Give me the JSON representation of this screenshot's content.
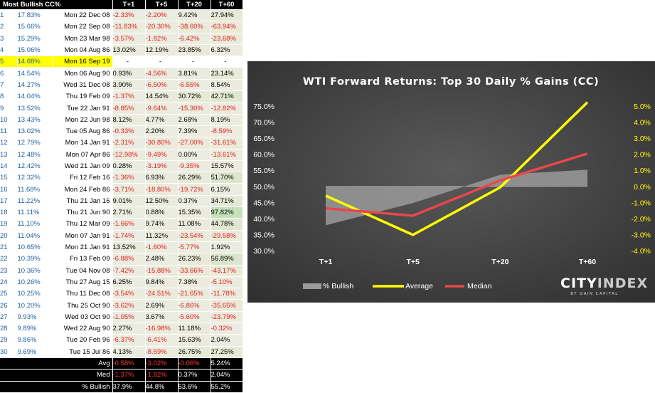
{
  "table": {
    "header": [
      "Most Bullish CC%",
      "T+1",
      "T+5",
      "T+20",
      "T+60"
    ],
    "highlight_row": 4,
    "rows": [
      [
        "1",
        "17.83%",
        "Mon 22 Dec 08",
        "-2.33%",
        "-2.20%",
        "9.42%",
        "27.94%"
      ],
      [
        "2",
        "15.66%",
        "Mon 22 Sep 08",
        "-11.83%",
        "-20.30%",
        "-38.60%",
        "-63.94%"
      ],
      [
        "3",
        "15.29%",
        "Mon 23 Mar 98",
        "-3.57%",
        "-1.82%",
        "-6.42%",
        "-23.68%"
      ],
      [
        "4",
        "15.06%",
        "Mon 04 Aug 86",
        "13.02%",
        "12.19%",
        "23.85%",
        "6.32%"
      ],
      [
        "5",
        "14.68%",
        "Mon 16 Sep 19",
        "-",
        "-",
        "-",
        "-"
      ],
      [
        "6",
        "14.54%",
        "Mon 06 Aug 90",
        "0.93%",
        "-4.56%",
        "3.81%",
        "23.14%"
      ],
      [
        "7",
        "14.27%",
        "Wed 31 Dec 08",
        "3.90%",
        "-6.50%",
        "-6.55%",
        "8.54%"
      ],
      [
        "8",
        "14.04%",
        "Thu 19 Feb 09",
        "-1.37%",
        "14.54%",
        "30.72%",
        "42.71%"
      ],
      [
        "9",
        "13.52%",
        "Tue 22 Jan 91",
        "-8.85%",
        "-9.64%",
        "-15.30%",
        "-12.82%"
      ],
      [
        "10",
        "13.43%",
        "Mon 22 Jun 98",
        "8.12%",
        "4.77%",
        "2.68%",
        "8.19%"
      ],
      [
        "11",
        "13.02%",
        "Tue 05 Aug 86",
        "-0.33%",
        "2.20%",
        "7.39%",
        "-8.59%"
      ],
      [
        "12",
        "12.79%",
        "Mon 14 Jan 91",
        "-2.31%",
        "-30.80%",
        "-27.00%",
        "-31.61%"
      ],
      [
        "13",
        "12.48%",
        "Mon 07 Apr 86",
        "-12.98%",
        "-9.49%",
        "0.00%",
        "-13.61%"
      ],
      [
        "14",
        "12.42%",
        "Wed 21 Jan 09",
        "0.28%",
        "-3.19%",
        "-9.35%",
        "15.57%"
      ],
      [
        "15",
        "12.32%",
        "Fri 12 Feb 16",
        "-1.36%",
        "6.93%",
        "26.29%",
        "51.70%"
      ],
      [
        "16",
        "11.68%",
        "Mon 24 Feb 86",
        "-3.71%",
        "-18.80%",
        "-19.72%",
        "6.15%"
      ],
      [
        "17",
        "11.22%",
        "Thu 21 Jan 16",
        "9.01%",
        "12.50%",
        "0.37%",
        "34.71%"
      ],
      [
        "18",
        "11.11%",
        "Thu 21 Jun 90",
        "2.71%",
        "0.88%",
        "15.35%",
        "97.82%"
      ],
      [
        "19",
        "11.10%",
        "Thu 12 Mar 09",
        "-1.66%",
        "9.74%",
        "11.08%",
        "44.78%"
      ],
      [
        "20",
        "11.04%",
        "Mon 07 Jan 91",
        "-1.74%",
        "11.32%",
        "-23.54%",
        "-29.58%"
      ],
      [
        "21",
        "10.65%",
        "Mon 21 Jan 91",
        "13.52%",
        "-1.60%",
        "-5.77%",
        "1.92%"
      ],
      [
        "22",
        "10.39%",
        "Fri 13 Feb 09",
        "-6.88%",
        "2.48%",
        "26.23%",
        "56.89%"
      ],
      [
        "23",
        "10.36%",
        "Tue 04 Nov 08",
        "-7.42%",
        "-15.88%",
        "-33.66%",
        "-43.17%"
      ],
      [
        "24",
        "10.26%",
        "Thu 27 Aug 15",
        "6.25%",
        "9.84%",
        "7.38%",
        "-5.10%"
      ],
      [
        "25",
        "10.25%",
        "Thu 11 Dec 08",
        "-3.54%",
        "-24.51%",
        "-21.65%",
        "-11.78%"
      ],
      [
        "26",
        "10.20%",
        "Thu 25 Oct 90",
        "-3.62%",
        "2.69%",
        "-6.86%",
        "-35.65%"
      ],
      [
        "27",
        "9.93%",
        "Wed 03 Oct 90",
        "-1.05%",
        "3.67%",
        "-5.60%",
        "-23.79%"
      ],
      [
        "28",
        "9.89%",
        "Wed 22 Aug 90",
        "2.27%",
        "-16.98%",
        "11.18%",
        "-0.32%"
      ],
      [
        "29",
        "9.86%",
        "Tue 20 Feb 96",
        "-6.37%",
        "-6.41%",
        "15.63%",
        "2.04%"
      ],
      [
        "30",
        "9.69%",
        "Tue 15 Jul 86",
        "4.13%",
        "-8.59%",
        "26.75%",
        "27.25%"
      ]
    ],
    "summary": [
      [
        "Avg",
        "-0.58%",
        "-3.02%",
        "-0.06%",
        "5.24%"
      ],
      [
        "Med",
        "-1.37%",
        "-1.82%",
        "0.37%",
        "2.04%"
      ],
      [
        "% Bullish",
        "37.9%",
        "44.8%",
        "53.6%",
        "55.2%"
      ]
    ]
  },
  "colors": {
    "chart_bg_center": "#5a5a5a",
    "chart_bg_edge": "#2e2e2e",
    "average": "#ffff00",
    "median": "#e8474c",
    "bullish_area": "#9a9a9a",
    "negative_text": "#e0201c",
    "highlight": "#ffff00"
  },
  "logo": {
    "brand_left": "CITY",
    "brand_right": "INDEX",
    "tagline": "BY GAIN CAPITAL"
  },
  "chart_data": {
    "type": "line",
    "title": "WTI Forward Returns: Top 30 Daily % Gains (CC)",
    "categories": [
      "T+1",
      "T+5",
      "T+20",
      "T+60"
    ],
    "left_axis": {
      "ticks": [
        "30.0%",
        "35.0%",
        "40.0%",
        "45.0%",
        "50.0%",
        "55.0%",
        "60.0%",
        "65.0%",
        "70.0%",
        "75.0%"
      ],
      "ylim": [
        30,
        75
      ]
    },
    "right_axis": {
      "ticks": [
        "-4.0%",
        "-3.0%",
        "-2.0%",
        "-1.0%",
        "0.0%",
        "1.0%",
        "2.0%",
        "3.0%",
        "4.0%",
        "5.0%"
      ],
      "ylim": [
        -4,
        5
      ]
    },
    "series": [
      {
        "name": "% Bullish",
        "kind": "area",
        "axis": "left",
        "values": [
          37.9,
          44.8,
          53.6,
          55.2
        ]
      },
      {
        "name": "Average",
        "kind": "line",
        "axis": "right",
        "values": [
          -0.58,
          -3.02,
          -0.06,
          5.24
        ]
      },
      {
        "name": "Median",
        "kind": "line",
        "axis": "right",
        "values": [
          -1.37,
          -1.82,
          0.37,
          2.04
        ]
      }
    ],
    "legend_position": "bottom-left"
  }
}
